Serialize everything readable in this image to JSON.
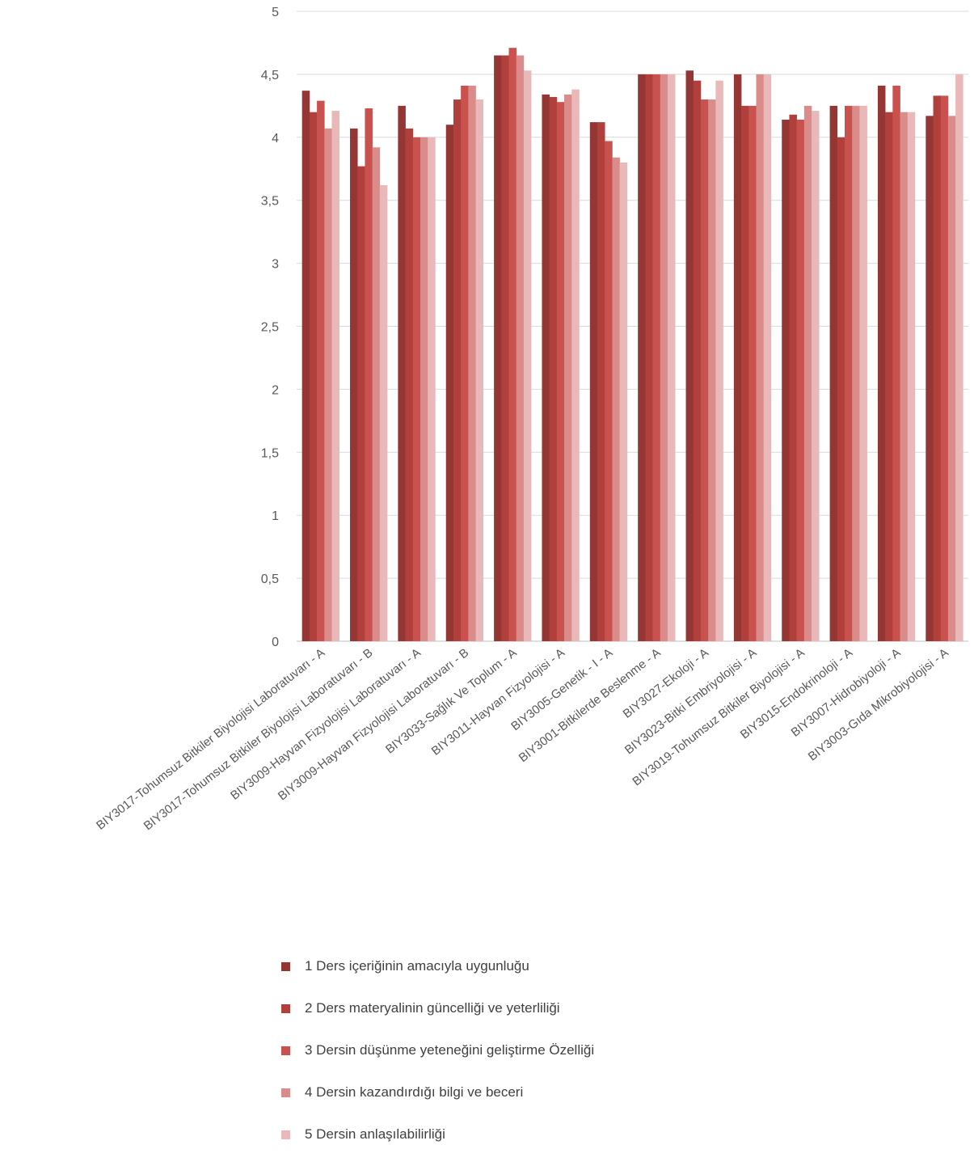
{
  "chart_data": {
    "type": "bar",
    "title": "",
    "xlabel": "",
    "ylabel": "",
    "ylim": [
      0,
      5
    ],
    "yticks": [
      "0",
      "0,5",
      "1",
      "1,5",
      "2",
      "2,5",
      "3",
      "3,5",
      "4",
      "4,5",
      "5"
    ],
    "grid": "horizontal",
    "legend_position": "bottom",
    "categories": [
      "BIY3017-Tohumsuz Bitkiler Biyolojisi Laboratuvarı - A",
      "BIY3017-Tohumsuz Bitkiler Biyolojisi Laboratuvarı - B",
      "BIY3009-Hayvan Fizyolojisi Laboratuvarı - A",
      "BIY3009-Hayvan Fizyolojisi Laboratuvarı - B",
      "BIY3033-Sağlık Ve Toplum - A",
      "BIY3011-Hayvan Fizyolojisi - A",
      "BIY3005-Genetik - I - A",
      "BIY3001-Bitkilerde Beslenme - A",
      "BIY3027-Ekoloji - A",
      "BIY3023-Bitki Embriyolojisi - A",
      "BIY3019-Tohumsuz Bitkiler Biyolojisi - A",
      "BIY3015-Endokrinoloji - A",
      "BIY3007-Hidrobiyoloji - A",
      "BIY3003-Gıda Mikrobiyolojisi - A"
    ],
    "series": [
      {
        "name": "1 Ders içeriğinin amacıyla uygunluğu",
        "color": "#943634",
        "values": [
          4.37,
          4.07,
          4.25,
          4.1,
          4.65,
          4.34,
          4.12,
          4.5,
          4.53,
          4.5,
          4.14,
          4.25,
          4.41,
          4.17
        ]
      },
      {
        "name": "2 Ders materyalinin güncelliği ve yeterliliği",
        "color": "#b13f3c",
        "values": [
          4.2,
          3.77,
          4.07,
          4.3,
          4.65,
          4.32,
          4.12,
          4.5,
          4.45,
          4.25,
          4.18,
          4.0,
          4.2,
          4.33
        ]
      },
      {
        "name": "3 Dersin düşünme yeteneğini geliştirme Özelliği",
        "color": "#c9514e",
        "values": [
          4.29,
          4.23,
          4.0,
          4.41,
          4.71,
          4.28,
          3.97,
          4.5,
          4.3,
          4.25,
          4.14,
          4.25,
          4.41,
          4.33
        ]
      },
      {
        "name": "4 Dersin kazandırdığı bilgi ve beceri",
        "color": "#d98c8a",
        "values": [
          4.07,
          3.92,
          4.0,
          4.41,
          4.65,
          4.34,
          3.84,
          4.5,
          4.3,
          4.5,
          4.25,
          4.25,
          4.2,
          4.17
        ]
      },
      {
        "name": "5 Dersin anlaşılabilirliği",
        "color": "#e8b9b8",
        "values": [
          4.21,
          3.62,
          4.0,
          4.3,
          4.53,
          4.38,
          3.8,
          4.5,
          4.45,
          4.5,
          4.21,
          4.25,
          4.2,
          4.5
        ]
      }
    ]
  }
}
